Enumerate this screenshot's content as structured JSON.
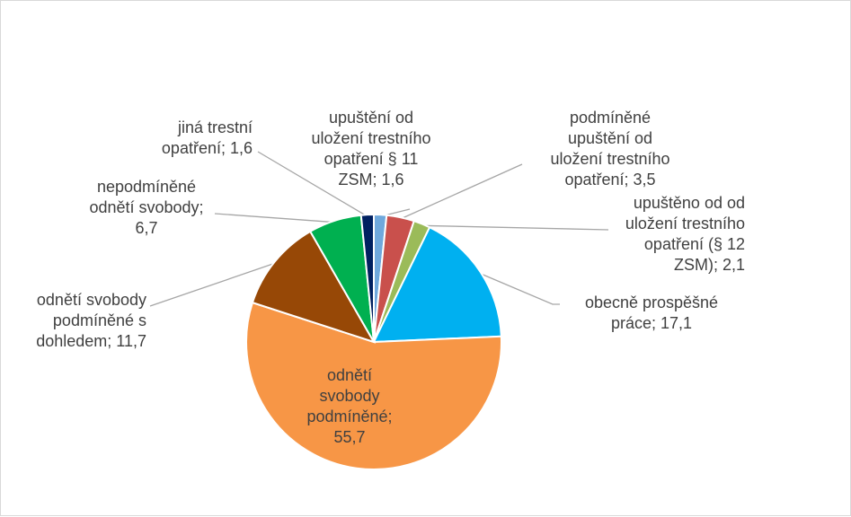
{
  "chart_data": {
    "type": "pie",
    "slices": [
      {
        "label": "upuštění od\nuložení trestního\nopatření § 11\nZSM; 1,6",
        "value": 1.6,
        "color": "#6fa8dc"
      },
      {
        "label": "podmíněné\nupuštění od\nuložení trestního\nopatření; 3,5",
        "value": 3.5,
        "color": "#c9504c"
      },
      {
        "label": "upuštěno od od\nuložení trestního\nopatření (§ 12\nZSM); 2,1",
        "value": 2.1,
        "color": "#9bbb59"
      },
      {
        "label": "obecně prospěšné\npráce; 17,1",
        "value": 17.1,
        "color": "#00b0f0"
      },
      {
        "label": "odnětí\nsvobody\npodmíněné;\n55,7",
        "value": 55.7,
        "color": "#f79646"
      },
      {
        "label": "odnětí svobody\npodmíněné s\ndohledem; 11,7",
        "value": 11.7,
        "color": "#974806"
      },
      {
        "label": "nepodmíněné\nodnětí svobody;\n6,7",
        "value": 6.7,
        "color": "#00b050"
      },
      {
        "label": "jiná trestní\nopatření; 1,6",
        "value": 1.6,
        "color": "#002060"
      }
    ],
    "start_angle_deg": 0,
    "direction": "clockwise",
    "legend": "none",
    "data_labels": "outside with leader lines; largest slice inside"
  }
}
